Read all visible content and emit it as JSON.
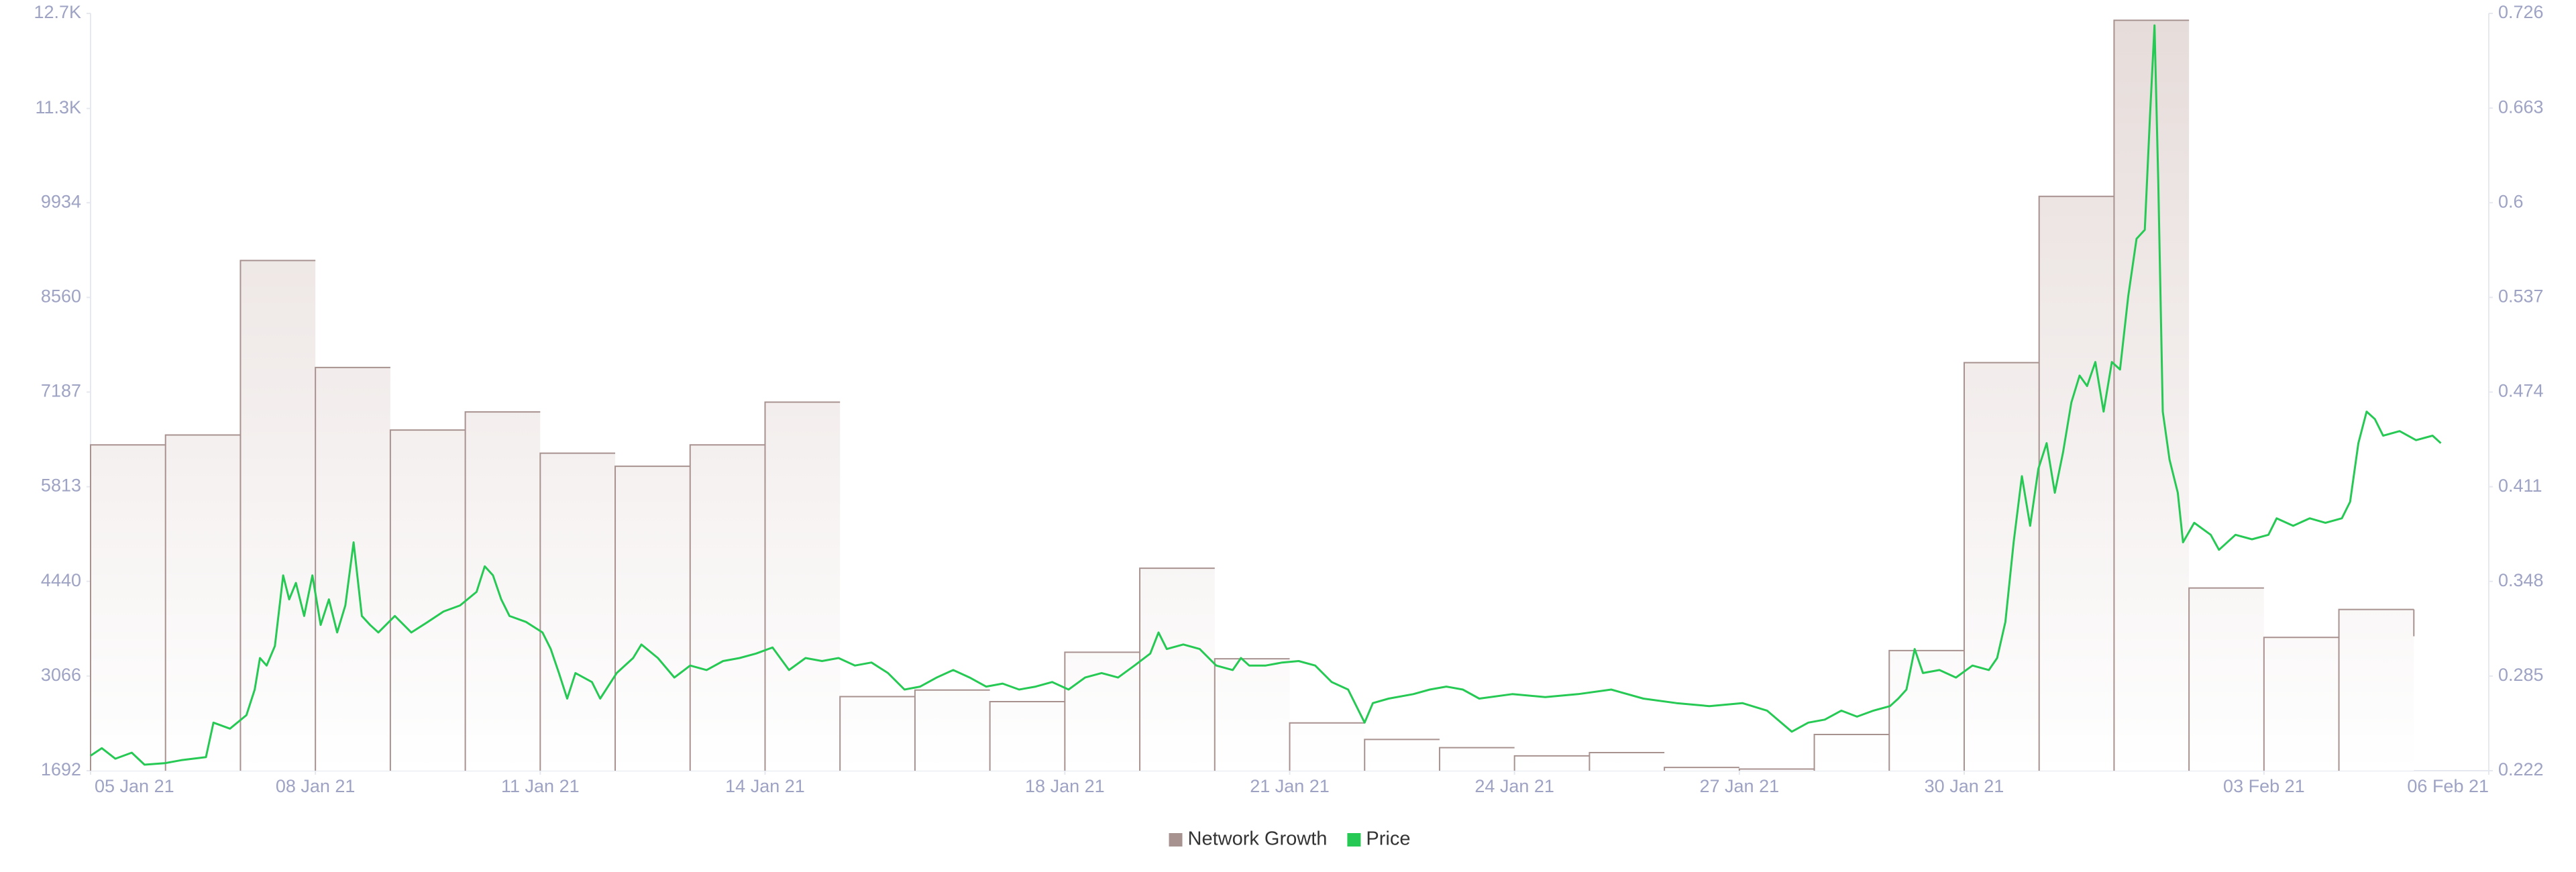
{
  "chart_data": {
    "type": "line",
    "xlim": [
      5,
      37
    ],
    "xticks": [
      {
        "value": 5,
        "label": "05 Jan 21"
      },
      {
        "value": 8,
        "label": "08 Jan 21"
      },
      {
        "value": 11,
        "label": "11 Jan 21"
      },
      {
        "value": 14,
        "label": "14 Jan 21"
      },
      {
        "value": 18,
        "label": "18 Jan 21"
      },
      {
        "value": 21,
        "label": "21 Jan 21"
      },
      {
        "value": 24,
        "label": "24 Jan 21"
      },
      {
        "value": 27,
        "label": "27 Jan 21"
      },
      {
        "value": 30,
        "label": "30 Jan 21"
      },
      {
        "value": 34,
        "label": "03 Feb 21"
      },
      {
        "value": 37,
        "label": "06 Feb 21"
      }
    ],
    "ylim": [
      1692,
      12681
    ],
    "yticks": [
      1692,
      3066,
      4440,
      5813,
      7187,
      8560,
      9934,
      {
        "value": 11302,
        "label": "11.3K"
      },
      {
        "value": 12681,
        "label": "12.7K"
      }
    ],
    "y2lim": [
      0.222,
      0.726
    ],
    "y2ticks": [
      0.222,
      0.285,
      0.348,
      0.411,
      0.474,
      0.537,
      0.6,
      0.663,
      0.726
    ],
    "legend": "bottom",
    "series": [
      {
        "name": "Network Growth",
        "type": "step-area",
        "color": "#a89290",
        "x": [
          5,
          6,
          7,
          8,
          9,
          10,
          11,
          12,
          13,
          14,
          15,
          16,
          17,
          18,
          19,
          20,
          21,
          22,
          23,
          24,
          25,
          26,
          27,
          28,
          29,
          30,
          31,
          32,
          33,
          34,
          35
        ],
        "values": [
          6420,
          6564,
          9095,
          7543,
          6635,
          6898,
          6300,
          6110,
          6420,
          7040,
          2767,
          2862,
          2695,
          3411,
          4630,
          3316,
          2385,
          2146,
          2026,
          1907,
          1955,
          1740,
          1716,
          2217,
          3435,
          7614,
          10026,
          12581,
          4343,
          3626,
          4032
        ]
      },
      {
        "name": "Price",
        "type": "line",
        "color": "#26c953",
        "axis": "y2",
        "x": [
          5.0,
          5.15,
          5.33,
          5.55,
          5.72,
          5.99,
          6.21,
          6.54,
          6.64,
          6.86,
          7.08,
          7.19,
          7.26,
          7.35,
          7.46,
          7.57,
          7.65,
          7.74,
          7.85,
          7.96,
          8.07,
          8.18,
          8.29,
          8.4,
          8.51,
          8.62,
          8.73,
          8.84,
          9.06,
          9.28,
          9.5,
          9.71,
          9.93,
          10.15,
          10.26,
          10.37,
          10.48,
          10.59,
          10.81,
          11.03,
          11.14,
          11.25,
          11.36,
          11.47,
          11.69,
          11.8,
          12.02,
          12.24,
          12.35,
          12.57,
          12.79,
          13.0,
          13.22,
          13.44,
          13.66,
          13.88,
          14.1,
          14.32,
          14.54,
          14.76,
          14.98,
          15.2,
          15.42,
          15.64,
          15.86,
          16.07,
          16.29,
          16.51,
          16.73,
          16.95,
          17.17,
          17.39,
          17.61,
          17.83,
          18.05,
          18.27,
          18.49,
          18.71,
          18.93,
          19.14,
          19.25,
          19.36,
          19.58,
          19.8,
          20.02,
          20.24,
          20.35,
          20.46,
          20.68,
          20.9,
          21.12,
          21.34,
          21.56,
          21.78,
          22.0,
          22.11,
          22.32,
          22.65,
          22.87,
          23.09,
          23.31,
          23.53,
          23.97,
          24.41,
          24.85,
          25.29,
          25.72,
          26.16,
          26.6,
          27.04,
          27.37,
          27.7,
          27.92,
          28.14,
          28.36,
          28.57,
          28.79,
          29.01,
          29.12,
          29.23,
          29.34,
          29.45,
          29.67,
          29.89,
          30.11,
          30.33,
          30.44,
          30.55,
          30.66,
          30.77,
          30.88,
          30.99,
          31.1,
          31.21,
          31.32,
          31.43,
          31.54,
          31.64,
          31.75,
          31.86,
          31.97,
          32.08,
          32.19,
          32.3,
          32.41,
          32.48,
          32.54,
          32.59,
          32.65,
          32.74,
          32.85,
          32.92,
          33.07,
          33.29,
          33.4,
          33.62,
          33.84,
          34.06,
          34.17,
          34.39,
          34.61,
          34.82,
          35.04,
          35.15,
          35.26,
          35.37,
          35.48,
          35.59,
          35.81,
          36.03,
          36.25,
          36.36
        ],
        "values": [
          0.232,
          0.237,
          0.23,
          0.234,
          0.226,
          0.227,
          0.229,
          0.231,
          0.254,
          0.25,
          0.259,
          0.276,
          0.297,
          0.292,
          0.305,
          0.352,
          0.336,
          0.347,
          0.325,
          0.352,
          0.319,
          0.336,
          0.314,
          0.332,
          0.374,
          0.325,
          0.319,
          0.314,
          0.325,
          0.314,
          0.321,
          0.328,
          0.332,
          0.341,
          0.358,
          0.352,
          0.336,
          0.325,
          0.321,
          0.314,
          0.303,
          0.287,
          0.27,
          0.287,
          0.281,
          0.27,
          0.287,
          0.297,
          0.306,
          0.297,
          0.284,
          0.292,
          0.289,
          0.295,
          0.297,
          0.3,
          0.304,
          0.289,
          0.297,
          0.295,
          0.297,
          0.292,
          0.294,
          0.287,
          0.276,
          0.278,
          0.284,
          0.289,
          0.284,
          0.278,
          0.28,
          0.276,
          0.278,
          0.281,
          0.276,
          0.284,
          0.287,
          0.284,
          0.292,
          0.3,
          0.314,
          0.303,
          0.306,
          0.303,
          0.292,
          0.289,
          0.297,
          0.292,
          0.292,
          0.294,
          0.295,
          0.292,
          0.281,
          0.276,
          0.254,
          0.267,
          0.27,
          0.273,
          0.276,
          0.278,
          0.276,
          0.27,
          0.273,
          0.271,
          0.273,
          0.276,
          0.27,
          0.267,
          0.265,
          0.267,
          0.262,
          0.248,
          0.254,
          0.256,
          0.262,
          0.258,
          0.262,
          0.265,
          0.27,
          0.276,
          0.303,
          0.287,
          0.289,
          0.284,
          0.292,
          0.289,
          0.297,
          0.321,
          0.374,
          0.418,
          0.385,
          0.423,
          0.44,
          0.407,
          0.434,
          0.467,
          0.485,
          0.478,
          0.494,
          0.461,
          0.494,
          0.489,
          0.538,
          0.576,
          0.582,
          0.658,
          0.718,
          0.614,
          0.461,
          0.429,
          0.407,
          0.374,
          0.387,
          0.379,
          0.369,
          0.379,
          0.376,
          0.379,
          0.39,
          0.385,
          0.39,
          0.387,
          0.39,
          0.401,
          0.44,
          0.461,
          0.456,
          0.445,
          0.448,
          0.442,
          0.445,
          0.44
        ]
      }
    ]
  }
}
